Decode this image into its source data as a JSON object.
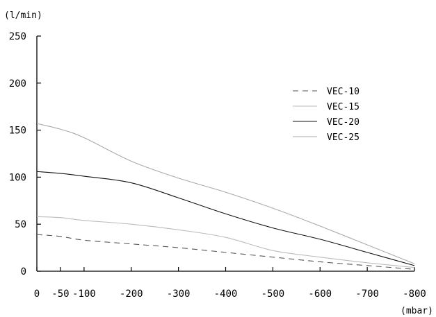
{
  "chart_data": {
    "type": "line",
    "title": "",
    "ylabel": "(l/min)",
    "xlabel": "(mbar)",
    "xlim": [
      0,
      -800
    ],
    "ylim": [
      0,
      250
    ],
    "xticks": [
      0,
      -50,
      -100,
      -200,
      -300,
      -400,
      -500,
      -600,
      -700,
      -800
    ],
    "xtick_labels": [
      "0",
      "-50",
      "-100",
      "-200",
      "-300",
      "-400",
      "-500",
      "-600",
      "-700",
      "-800"
    ],
    "yticks": [
      0,
      50,
      100,
      150,
      200,
      250
    ],
    "ytick_labels": [
      "0",
      "50",
      "100",
      "150",
      "200",
      "250"
    ],
    "grid": false,
    "legend_position": "top-right",
    "series": [
      {
        "name": "VEC-10",
        "style": "dashed",
        "color": "#555555",
        "points": [
          [
            0,
            39
          ],
          [
            -50,
            37
          ],
          [
            -100,
            33
          ],
          [
            -200,
            29
          ],
          [
            -300,
            25
          ],
          [
            -400,
            20
          ],
          [
            -500,
            15
          ],
          [
            -600,
            10
          ],
          [
            -700,
            6
          ],
          [
            -800,
            2
          ]
        ]
      },
      {
        "name": "VEC-15",
        "style": "solid",
        "color": "#bbbbbb",
        "points": [
          [
            0,
            58
          ],
          [
            -50,
            57
          ],
          [
            -100,
            54
          ],
          [
            -200,
            50
          ],
          [
            -300,
            44
          ],
          [
            -400,
            36
          ],
          [
            -500,
            22
          ],
          [
            -600,
            15
          ],
          [
            -700,
            9
          ],
          [
            -800,
            4
          ]
        ]
      },
      {
        "name": "VEC-20",
        "style": "solid",
        "color": "#111111",
        "points": [
          [
            0,
            106
          ],
          [
            -50,
            104
          ],
          [
            -100,
            101
          ],
          [
            -200,
            94
          ],
          [
            -300,
            78
          ],
          [
            -400,
            61
          ],
          [
            -500,
            46
          ],
          [
            -600,
            34
          ],
          [
            -700,
            20
          ],
          [
            -800,
            6
          ]
        ]
      },
      {
        "name": "VEC-25",
        "style": "solid",
        "color": "#aaaaaa",
        "points": [
          [
            0,
            157
          ],
          [
            -50,
            151
          ],
          [
            -100,
            142
          ],
          [
            -200,
            117
          ],
          [
            -300,
            99
          ],
          [
            -400,
            84
          ],
          [
            -500,
            67
          ],
          [
            -600,
            48
          ],
          [
            -700,
            28
          ],
          [
            -800,
            8
          ]
        ]
      }
    ]
  }
}
